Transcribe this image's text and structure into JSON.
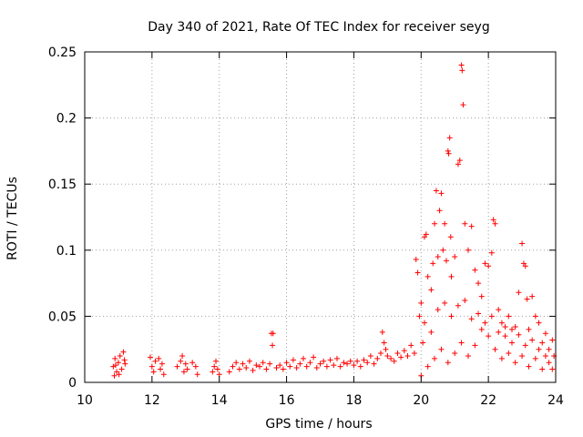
{
  "chart_data": {
    "type": "scatter",
    "title": "Day 340 of 2021, Rate Of TEC Index for receiver seyg",
    "xlabel": "GPS time / hours",
    "ylabel": "ROTI / TECUs",
    "xlim": [
      10,
      24
    ],
    "ylim": [
      0,
      0.25
    ],
    "xticks": [
      10,
      12,
      14,
      16,
      18,
      20,
      22,
      24
    ],
    "xtick_labels": [
      "10",
      "12",
      "14",
      "16",
      "18",
      "20",
      "22",
      "24"
    ],
    "yticks": [
      0,
      0.05,
      0.1,
      0.15,
      0.2,
      0.25
    ],
    "ytick_labels": [
      "0",
      "0.05",
      "0.1",
      "0.15",
      "0.2",
      "0.25"
    ],
    "grid": true,
    "marker": "+",
    "color": "#ff0000",
    "series": [
      {
        "name": "ROTI",
        "points": [
          [
            10.85,
            0.012
          ],
          [
            10.9,
            0.018
          ],
          [
            10.95,
            0.008
          ],
          [
            11.0,
            0.015
          ],
          [
            11.05,
            0.02
          ],
          [
            11.1,
            0.01
          ],
          [
            11.15,
            0.023
          ],
          [
            11.2,
            0.014
          ],
          [
            10.88,
            0.005
          ],
          [
            11.02,
            0.006
          ],
          [
            11.18,
            0.017
          ],
          [
            10.92,
            0.013
          ],
          [
            11.95,
            0.019
          ],
          [
            12.0,
            0.012
          ],
          [
            12.05,
            0.008
          ],
          [
            12.1,
            0.016
          ],
          [
            12.2,
            0.018
          ],
          [
            12.25,
            0.01
          ],
          [
            12.3,
            0.014
          ],
          [
            12.35,
            0.006
          ],
          [
            12.75,
            0.012
          ],
          [
            12.85,
            0.016
          ],
          [
            12.9,
            0.02
          ],
          [
            12.95,
            0.008
          ],
          [
            13.0,
            0.014
          ],
          [
            13.05,
            0.01
          ],
          [
            13.2,
            0.015
          ],
          [
            13.3,
            0.012
          ],
          [
            13.35,
            0.006
          ],
          [
            13.8,
            0.008
          ],
          [
            13.85,
            0.012
          ],
          [
            13.9,
            0.016
          ],
          [
            13.95,
            0.01
          ],
          [
            14.0,
            0.006
          ],
          [
            14.3,
            0.008
          ],
          [
            14.4,
            0.012
          ],
          [
            14.5,
            0.015
          ],
          [
            14.6,
            0.01
          ],
          [
            14.7,
            0.014
          ],
          [
            14.8,
            0.011
          ],
          [
            14.9,
            0.016
          ],
          [
            15.0,
            0.009
          ],
          [
            15.1,
            0.013
          ],
          [
            15.2,
            0.012
          ],
          [
            15.3,
            0.015
          ],
          [
            15.4,
            0.01
          ],
          [
            15.55,
            0.037
          ],
          [
            15.6,
            0.037
          ],
          [
            15.58,
            0.028
          ],
          [
            15.5,
            0.014
          ],
          [
            15.7,
            0.011
          ],
          [
            15.8,
            0.013
          ],
          [
            15.9,
            0.01
          ],
          [
            16.0,
            0.015
          ],
          [
            16.1,
            0.012
          ],
          [
            16.2,
            0.017
          ],
          [
            16.3,
            0.011
          ],
          [
            16.4,
            0.014
          ],
          [
            16.5,
            0.018
          ],
          [
            16.6,
            0.012
          ],
          [
            16.7,
            0.015
          ],
          [
            16.8,
            0.019
          ],
          [
            16.9,
            0.011
          ],
          [
            17.0,
            0.014
          ],
          [
            17.1,
            0.016
          ],
          [
            17.2,
            0.012
          ],
          [
            17.3,
            0.017
          ],
          [
            17.4,
            0.013
          ],
          [
            17.5,
            0.018
          ],
          [
            17.6,
            0.012
          ],
          [
            17.7,
            0.015
          ],
          [
            17.8,
            0.014
          ],
          [
            17.9,
            0.016
          ],
          [
            18.0,
            0.013
          ],
          [
            18.1,
            0.016
          ],
          [
            18.2,
            0.012
          ],
          [
            18.3,
            0.017
          ],
          [
            18.4,
            0.015
          ],
          [
            18.5,
            0.02
          ],
          [
            18.6,
            0.014
          ],
          [
            18.7,
            0.018
          ],
          [
            18.8,
            0.022
          ],
          [
            18.85,
            0.038
          ],
          [
            18.9,
            0.03
          ],
          [
            18.95,
            0.025
          ],
          [
            19.0,
            0.02
          ],
          [
            19.1,
            0.018
          ],
          [
            19.2,
            0.016
          ],
          [
            19.3,
            0.022
          ],
          [
            19.4,
            0.019
          ],
          [
            19.5,
            0.024
          ],
          [
            19.6,
            0.02
          ],
          [
            19.7,
            0.028
          ],
          [
            19.8,
            0.022
          ],
          [
            19.85,
            0.093
          ],
          [
            19.9,
            0.083
          ],
          [
            19.95,
            0.05
          ],
          [
            20.0,
            0.06
          ],
          [
            20.05,
            0.03
          ],
          [
            20.1,
            0.11
          ],
          [
            20.15,
            0.112
          ],
          [
            20.2,
            0.08
          ],
          [
            20.3,
            0.07
          ],
          [
            20.35,
            0.09
          ],
          [
            20.4,
            0.12
          ],
          [
            20.45,
            0.145
          ],
          [
            20.5,
            0.095
          ],
          [
            20.55,
            0.13
          ],
          [
            20.6,
            0.143
          ],
          [
            20.65,
            0.1
          ],
          [
            20.7,
            0.12
          ],
          [
            20.75,
            0.092
          ],
          [
            20.8,
            0.175
          ],
          [
            20.82,
            0.173
          ],
          [
            20.85,
            0.185
          ],
          [
            20.88,
            0.11
          ],
          [
            20.9,
            0.08
          ],
          [
            21.0,
            0.095
          ],
          [
            21.1,
            0.165
          ],
          [
            21.15,
            0.168
          ],
          [
            21.2,
            0.24
          ],
          [
            21.22,
            0.236
          ],
          [
            21.25,
            0.21
          ],
          [
            21.3,
            0.12
          ],
          [
            21.4,
            0.1
          ],
          [
            21.5,
            0.118
          ],
          [
            21.6,
            0.085
          ],
          [
            21.7,
            0.075
          ],
          [
            21.8,
            0.065
          ],
          [
            21.9,
            0.09
          ],
          [
            22.0,
            0.088
          ],
          [
            22.1,
            0.098
          ],
          [
            22.15,
            0.123
          ],
          [
            22.2,
            0.12
          ],
          [
            22.3,
            0.055
          ],
          [
            22.4,
            0.045
          ],
          [
            22.5,
            0.035
          ],
          [
            22.6,
            0.05
          ],
          [
            22.7,
            0.04
          ],
          [
            22.8,
            0.042
          ],
          [
            22.9,
            0.068
          ],
          [
            23.0,
            0.105
          ],
          [
            23.05,
            0.09
          ],
          [
            23.1,
            0.088
          ],
          [
            23.15,
            0.063
          ],
          [
            23.2,
            0.04
          ],
          [
            23.3,
            0.065
          ],
          [
            23.4,
            0.05
          ],
          [
            23.5,
            0.045
          ],
          [
            23.6,
            0.03
          ],
          [
            23.7,
            0.037
          ],
          [
            23.8,
            0.025
          ],
          [
            23.9,
            0.032
          ],
          [
            23.95,
            0.02
          ],
          [
            20.0,
            0.005
          ],
          [
            20.2,
            0.012
          ],
          [
            20.4,
            0.018
          ],
          [
            20.6,
            0.025
          ],
          [
            20.8,
            0.015
          ],
          [
            21.0,
            0.022
          ],
          [
            21.2,
            0.03
          ],
          [
            21.4,
            0.02
          ],
          [
            21.6,
            0.028
          ],
          [
            21.8,
            0.04
          ],
          [
            22.0,
            0.035
          ],
          [
            22.2,
            0.025
          ],
          [
            22.4,
            0.018
          ],
          [
            22.6,
            0.022
          ],
          [
            22.8,
            0.015
          ],
          [
            23.0,
            0.02
          ],
          [
            23.2,
            0.012
          ],
          [
            23.4,
            0.018
          ],
          [
            23.6,
            0.01
          ],
          [
            23.8,
            0.015
          ],
          [
            20.1,
            0.045
          ],
          [
            20.3,
            0.038
          ],
          [
            20.5,
            0.055
          ],
          [
            20.7,
            0.06
          ],
          [
            20.9,
            0.05
          ],
          [
            21.1,
            0.058
          ],
          [
            21.3,
            0.062
          ],
          [
            21.5,
            0.048
          ],
          [
            21.7,
            0.052
          ],
          [
            21.9,
            0.045
          ],
          [
            22.1,
            0.05
          ],
          [
            22.3,
            0.038
          ],
          [
            22.5,
            0.042
          ],
          [
            22.7,
            0.03
          ],
          [
            22.9,
            0.036
          ],
          [
            23.1,
            0.028
          ],
          [
            23.3,
            0.032
          ],
          [
            23.5,
            0.025
          ],
          [
            23.7,
            0.02
          ],
          [
            23.9,
            0.01
          ]
        ]
      }
    ]
  }
}
